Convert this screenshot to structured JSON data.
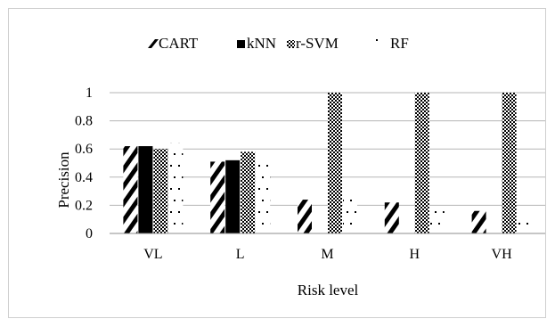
{
  "chart_data": {
    "type": "bar",
    "categories": [
      "VL",
      "L",
      "M",
      "H",
      "VH"
    ],
    "series": [
      {
        "name": "CART",
        "pattern": "diagonal-stripes",
        "values": [
          0.62,
          0.51,
          0.24,
          0.22,
          0.16
        ]
      },
      {
        "name": "kNN",
        "pattern": "solid-black",
        "values": [
          0.62,
          0.52,
          0.0,
          0.0,
          0.0
        ]
      },
      {
        "name": "r-SVM",
        "pattern": "checkered",
        "values": [
          0.6,
          0.58,
          1.0,
          1.0,
          1.0
        ]
      },
      {
        "name": "RF",
        "pattern": "sparse-dots",
        "values": [
          0.64,
          0.51,
          0.25,
          0.19,
          0.13
        ]
      }
    ],
    "xlabel": "Risk level",
    "ylabel": "Precision",
    "ylim": [
      0,
      1
    ],
    "yticks": [
      "0",
      "0.2",
      "0.4",
      "0.6",
      "0.8",
      "1"
    ],
    "grid": true,
    "legend_position": "top"
  },
  "colors": {
    "bar_fill": "#000000",
    "grid": "#b5b5b5",
    "axis": "#8c8c8c",
    "frame": "#cfcfcf"
  }
}
